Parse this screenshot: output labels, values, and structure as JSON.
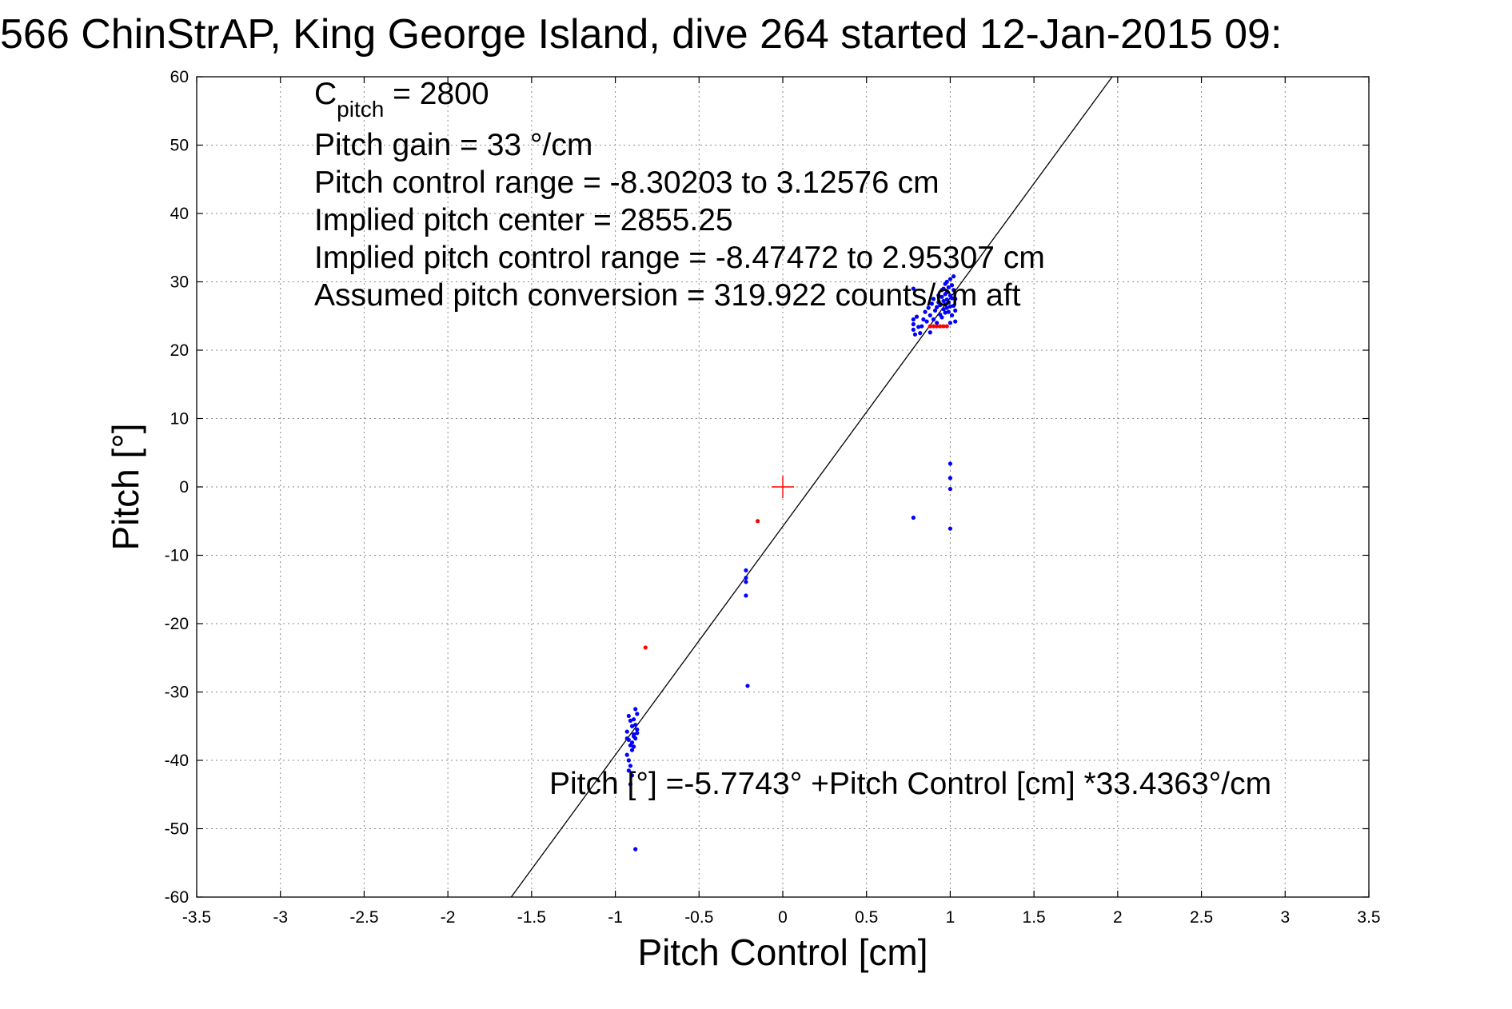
{
  "chart_data": {
    "type": "scatter",
    "title": "566 ChinStrAP, King George Island, dive 264 started 12-Jan-2015 09:",
    "xlabel": "Pitch Control [cm]",
    "ylabel": "Pitch [°]",
    "xlim": [
      -3.5,
      3.5
    ],
    "ylim": [
      -60,
      60
    ],
    "xticks": [
      -3.5,
      -3,
      -2.5,
      -2,
      -1.5,
      -1,
      -0.5,
      0,
      0.5,
      1,
      1.5,
      2,
      2.5,
      3,
      3.5
    ],
    "yticks": [
      -60,
      -50,
      -40,
      -30,
      -20,
      -10,
      0,
      10,
      20,
      30,
      40,
      50,
      60
    ],
    "xtick_labels": [
      "-3.5",
      "-3",
      "-2.5",
      "-2",
      "-1.5",
      "-1",
      "-0.5",
      "0",
      "0.5",
      "1",
      "1.5",
      "2",
      "2.5",
      "3",
      "3.5"
    ],
    "ytick_labels": [
      "-60",
      "-50",
      "-40",
      "-30",
      "-20",
      "-10",
      "0",
      "10",
      "20",
      "30",
      "40",
      "50",
      "60"
    ],
    "grid": true,
    "fit_line": {
      "intercept": -5.7743,
      "slope": 33.4363,
      "color": "#000000"
    },
    "center_marker": {
      "x": 0,
      "y": 0,
      "color": "#ff0000"
    },
    "series": [
      {
        "name": "blue points",
        "color": "#0000ff",
        "points": [
          [
            -0.92,
            -33.5
          ],
          [
            -0.91,
            -34.2
          ],
          [
            -0.9,
            -35.0
          ],
          [
            -0.93,
            -35.8
          ],
          [
            -0.89,
            -36.5
          ],
          [
            -0.92,
            -37.0
          ],
          [
            -0.91,
            -37.8
          ],
          [
            -0.9,
            -38.5
          ],
          [
            -0.93,
            -39.2
          ],
          [
            -0.92,
            -40.0
          ],
          [
            -0.91,
            -40.8
          ],
          [
            -0.92,
            -41.5
          ],
          [
            -0.9,
            -42.2
          ],
          [
            -0.91,
            -43.5
          ],
          [
            -0.88,
            -32.5
          ],
          [
            -0.87,
            -33.2
          ],
          [
            -0.89,
            -34.0
          ],
          [
            -0.88,
            -34.8
          ],
          [
            -0.87,
            -35.5
          ],
          [
            -0.89,
            -36.2
          ],
          [
            -0.88,
            -36.8
          ],
          [
            -0.9,
            -37.4
          ],
          [
            -0.87,
            -36.0
          ],
          [
            -0.93,
            -36.8
          ],
          [
            -0.89,
            -38.0
          ],
          [
            -0.88,
            -53.0
          ],
          [
            -0.22,
            -12.2
          ],
          [
            -0.22,
            -13.3
          ],
          [
            -0.22,
            -13.9
          ],
          [
            -0.22,
            -15.9
          ],
          [
            -0.21,
            -29.1
          ],
          [
            0.78,
            -4.5
          ],
          [
            1.0,
            3.4
          ],
          [
            1.0,
            1.3
          ],
          [
            1.0,
            -0.3
          ],
          [
            1.0,
            -6.1
          ],
          [
            0.78,
            29.0
          ],
          [
            0.78,
            24.5
          ],
          [
            0.78,
            23.8
          ],
          [
            0.78,
            23.0
          ],
          [
            0.79,
            22.3
          ],
          [
            0.8,
            24.9
          ],
          [
            0.81,
            23.4
          ],
          [
            0.82,
            22.5
          ],
          [
            0.83,
            23.5
          ],
          [
            0.84,
            24.5
          ],
          [
            0.85,
            25.6
          ],
          [
            0.86,
            24.2
          ],
          [
            0.87,
            26.2
          ],
          [
            0.88,
            25.1
          ],
          [
            0.89,
            26.8
          ],
          [
            0.9,
            27.5
          ],
          [
            0.91,
            25.8
          ],
          [
            0.92,
            26.3
          ],
          [
            0.93,
            27.0
          ],
          [
            0.93,
            28.0
          ],
          [
            0.94,
            25.2
          ],
          [
            0.94,
            26.6
          ],
          [
            0.95,
            27.8
          ],
          [
            0.95,
            28.8
          ],
          [
            0.95,
            24.8
          ],
          [
            0.96,
            26.0
          ],
          [
            0.96,
            27.2
          ],
          [
            0.96,
            29.0
          ],
          [
            0.97,
            25.5
          ],
          [
            0.97,
            26.7
          ],
          [
            0.97,
            28.2
          ],
          [
            0.97,
            29.7
          ],
          [
            0.98,
            26.2
          ],
          [
            0.98,
            27.4
          ],
          [
            0.98,
            28.5
          ],
          [
            0.98,
            30.0
          ],
          [
            0.99,
            25.6
          ],
          [
            0.99,
            27.0
          ],
          [
            0.99,
            29.2
          ],
          [
            1.0,
            26.4
          ],
          [
            1.0,
            28.0
          ],
          [
            1.0,
            30.4
          ],
          [
            1.01,
            25.1
          ],
          [
            1.01,
            27.6
          ],
          [
            1.01,
            29.5
          ],
          [
            1.02,
            26.5
          ],
          [
            1.02,
            28.8
          ],
          [
            1.02,
            30.8
          ],
          [
            1.03,
            24.2
          ],
          [
            1.03,
            25.8
          ],
          [
            1.03,
            27.5
          ],
          [
            0.92,
            24.0
          ],
          [
            0.9,
            24.5
          ],
          [
            0.88,
            22.6
          ],
          [
            1.0,
            24.0
          ]
        ]
      },
      {
        "name": "red points",
        "color": "#ff0000",
        "points": [
          [
            -0.82,
            -23.5
          ],
          [
            -0.15,
            -5.0
          ],
          [
            0.88,
            23.5
          ],
          [
            0.9,
            23.5
          ],
          [
            0.92,
            23.5
          ],
          [
            0.94,
            23.5
          ],
          [
            0.96,
            23.5
          ],
          [
            0.98,
            23.5
          ]
        ]
      }
    ],
    "annotations": [
      {
        "base": "C",
        "sub": "pitch",
        "rest": " = 2800"
      },
      {
        "text": "Pitch gain = 33 °/cm"
      },
      {
        "text": "Pitch control range = -8.30203 to 3.12576 cm"
      },
      {
        "text": "Implied pitch center = 2855.25"
      },
      {
        "text": "Implied pitch control range = -8.47472 to 2.95307 cm"
      },
      {
        "text": "Assumed pitch conversion = 319.922 counts/cm aft"
      },
      {
        "text": "Pitch [°] =-5.7743° +Pitch Control [cm] *33.4363°/cm"
      }
    ]
  }
}
